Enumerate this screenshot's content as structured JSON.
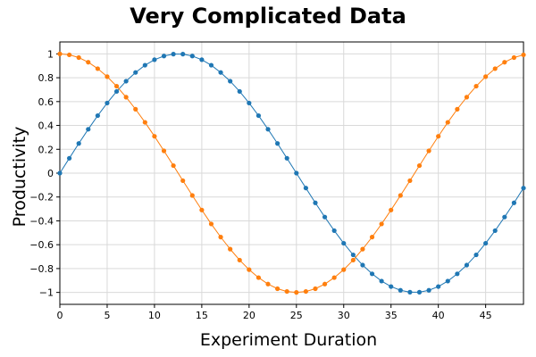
{
  "chart_data": {
    "type": "line",
    "title": "Very Complicated Data",
    "xlabel": "Experiment Duration",
    "ylabel": "Productivity",
    "xlim": [
      0,
      49
    ],
    "ylim": [
      -1.1,
      1.1
    ],
    "xticks": [
      0,
      5,
      10,
      15,
      20,
      25,
      30,
      35,
      40,
      45
    ],
    "yticks": [
      -1,
      -0.8,
      -0.6,
      -0.4,
      -0.2,
      0,
      0.2,
      0.4,
      0.6,
      0.8,
      1
    ],
    "grid": true,
    "x": [
      0,
      1,
      2,
      3,
      4,
      5,
      6,
      7,
      8,
      9,
      10,
      11,
      12,
      13,
      14,
      15,
      16,
      17,
      18,
      19,
      20,
      21,
      22,
      23,
      24,
      25,
      26,
      27,
      28,
      29,
      30,
      31,
      32,
      33,
      34,
      35,
      36,
      37,
      38,
      39,
      40,
      41,
      42,
      43,
      44,
      45,
      46,
      47,
      48,
      49
    ],
    "series": [
      {
        "color": "#1f77b4",
        "values": [
          0,
          0.125,
          0.249,
          0.368,
          0.482,
          0.588,
          0.685,
          0.771,
          0.844,
          0.905,
          0.951,
          0.982,
          0.998,
          0.998,
          0.982,
          0.951,
          0.905,
          0.844,
          0.771,
          0.685,
          0.588,
          0.482,
          0.368,
          0.249,
          0.125,
          0,
          -0.125,
          -0.249,
          -0.368,
          -0.482,
          -0.588,
          -0.685,
          -0.771,
          -0.844,
          -0.905,
          -0.951,
          -0.982,
          -0.998,
          -0.998,
          -0.982,
          -0.951,
          -0.905,
          -0.844,
          -0.771,
          -0.685,
          -0.588,
          -0.482,
          -0.368,
          -0.249,
          -0.125
        ]
      },
      {
        "color": "#ff7f0e",
        "values": [
          1,
          0.992,
          0.969,
          0.93,
          0.876,
          0.809,
          0.729,
          0.637,
          0.536,
          0.426,
          0.309,
          0.187,
          0.063,
          -0.063,
          -0.187,
          -0.309,
          -0.426,
          -0.536,
          -0.637,
          -0.729,
          -0.809,
          -0.876,
          -0.93,
          -0.969,
          -0.992,
          -1,
          -0.992,
          -0.969,
          -0.93,
          -0.876,
          -0.809,
          -0.729,
          -0.637,
          -0.536,
          -0.426,
          -0.309,
          -0.187,
          -0.063,
          0.063,
          0.187,
          0.309,
          0.426,
          0.536,
          0.637,
          0.729,
          0.809,
          0.876,
          0.93,
          0.969,
          0.992
        ]
      }
    ]
  }
}
